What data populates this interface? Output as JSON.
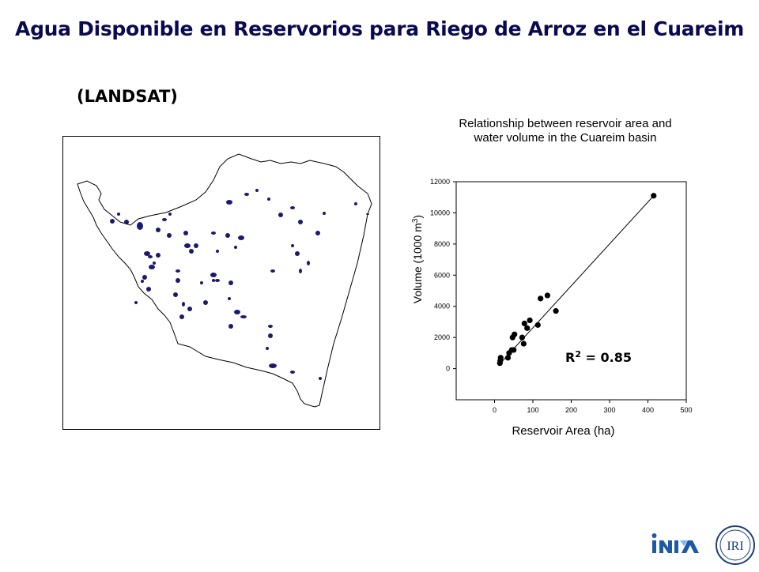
{
  "slide": {
    "title": "Agua Disponible en Reservorios para Riego de Arroz en el Cuareim",
    "subtitle": "(LANDSAT)"
  },
  "map": {
    "water_color": "#1a1a6e",
    "outline_color": "#000000"
  },
  "chart_data": {
    "type": "scatter",
    "title_lines": [
      "Relationship between reservoir area and",
      "water volume in the Cuareim basin"
    ],
    "xlabel": "Reservoir Area (ha)",
    "ylabel": "Volume (1000 m",
    "ylabel_sup": "3",
    "ylabel_close": ")",
    "xlim": [
      -100,
      500
    ],
    "ylim": [
      -2000,
      12000
    ],
    "xticks": [
      0,
      100,
      200,
      300,
      400,
      500
    ],
    "yticks": [
      0,
      2000,
      4000,
      6000,
      8000,
      10000,
      12000
    ],
    "points": [
      {
        "x": 14,
        "y": 350
      },
      {
        "x": 15,
        "y": 500
      },
      {
        "x": 16,
        "y": 700
      },
      {
        "x": 35,
        "y": 700
      },
      {
        "x": 38,
        "y": 1000
      },
      {
        "x": 45,
        "y": 1200
      },
      {
        "x": 50,
        "y": 1200
      },
      {
        "x": 47,
        "y": 2000
      },
      {
        "x": 52,
        "y": 2200
      },
      {
        "x": 72,
        "y": 2000
      },
      {
        "x": 76,
        "y": 1600
      },
      {
        "x": 78,
        "y": 2900
      },
      {
        "x": 85,
        "y": 2600
      },
      {
        "x": 92,
        "y": 3100
      },
      {
        "x": 113,
        "y": 2800
      },
      {
        "x": 120,
        "y": 4500
      },
      {
        "x": 138,
        "y": 4700
      },
      {
        "x": 160,
        "y": 3700
      },
      {
        "x": 415,
        "y": 11100
      }
    ],
    "trendline": {
      "x": [
        10,
        415
      ],
      "y": [
        200,
        11100
      ]
    },
    "r2_label": "R",
    "r2_sup": "2",
    "r2_value": " = 0.85",
    "marker_color": "#000000"
  },
  "logos": {
    "inia_text": "INIA",
    "inia_color": "#1c5aa6",
    "iri_text": "IRI",
    "iri_color": "#1f3f7a"
  }
}
